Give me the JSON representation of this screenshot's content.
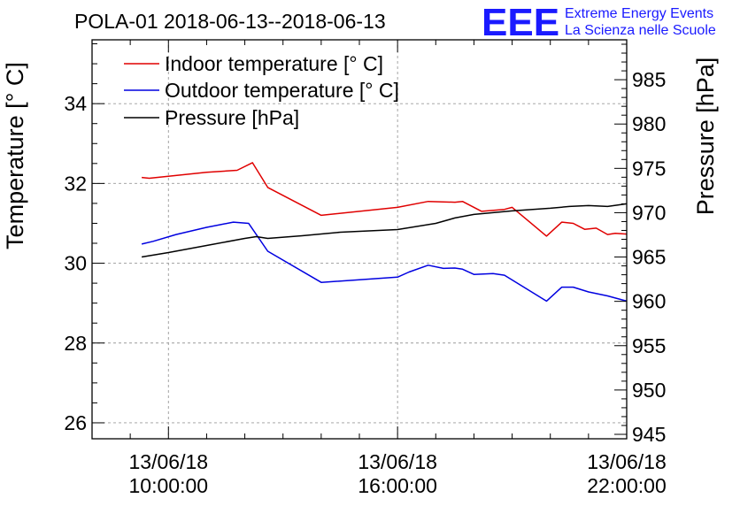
{
  "header": {
    "title": "POLA-01 2018-06-13--2018-06-13",
    "logo_text": "EEE",
    "org_line1": "Extreme Energy Events",
    "org_line2": "La Scienza nelle Scuole"
  },
  "colors": {
    "indoor": "#e00000",
    "outdoor": "#0000e0",
    "pressure": "#000000",
    "logo": "#1a1aff",
    "grid": "#9a9a9a"
  },
  "chart_data": {
    "type": "line",
    "title": "POLA-01 2018-06-13--2018-06-13",
    "ylabel": "Temperature [° C]",
    "y2label": "Pressure [hPa]",
    "ylim": [
      25.6,
      35.6
    ],
    "y2lim": [
      944.5,
      989.5
    ],
    "yticks": [
      26,
      28,
      30,
      32,
      34
    ],
    "y2ticks": [
      945,
      950,
      955,
      960,
      965,
      970,
      975,
      980,
      985
    ],
    "xlim": [
      8.0,
      22.0
    ],
    "xticks": [
      {
        "x": 10,
        "date": "13/06/18",
        "time": "10:00:00"
      },
      {
        "x": 16,
        "date": "13/06/18",
        "time": "16:00:00"
      },
      {
        "x": 22,
        "date": "13/06/18",
        "time": "22:00:00"
      }
    ],
    "grid": true,
    "legend_position": "top-left",
    "series": [
      {
        "name": "Indoor temperature [° C]",
        "axis": "left",
        "color_key": "indoor",
        "x": [
          9.3,
          9.5,
          10.0,
          11.0,
          11.8,
          12.2,
          12.6,
          14.0,
          16.0,
          16.8,
          17.5,
          17.7,
          18.2,
          18.8,
          19.0,
          19.9,
          20.3,
          20.6,
          20.9,
          21.2,
          21.5,
          21.7,
          22.0
        ],
        "y": [
          32.15,
          32.13,
          32.18,
          32.28,
          32.33,
          32.52,
          31.9,
          31.2,
          31.4,
          31.55,
          31.53,
          31.55,
          31.3,
          31.35,
          31.4,
          30.68,
          31.03,
          31.0,
          30.85,
          30.88,
          30.72,
          30.75,
          30.73
        ]
      },
      {
        "name": "Outdoor temperature [° C]",
        "axis": "left",
        "color_key": "outdoor",
        "x": [
          9.3,
          9.6,
          10.2,
          11.0,
          11.7,
          12.1,
          12.6,
          14.0,
          16.0,
          16.3,
          16.8,
          17.2,
          17.5,
          17.7,
          18.0,
          18.5,
          18.8,
          19.9,
          20.3,
          20.6,
          21.0,
          21.5,
          22.0
        ],
        "y": [
          30.48,
          30.55,
          30.72,
          30.9,
          31.03,
          31.0,
          30.3,
          29.52,
          29.65,
          29.78,
          29.95,
          29.87,
          29.88,
          29.85,
          29.72,
          29.74,
          29.7,
          29.05,
          29.4,
          29.4,
          29.28,
          29.18,
          29.05
        ]
      },
      {
        "name": "Pressure [hPa]",
        "axis": "right",
        "color_key": "pressure",
        "x": [
          9.3,
          10.0,
          11.0,
          12.0,
          12.3,
          12.6,
          13.5,
          14.5,
          15.5,
          16.0,
          17.0,
          17.5,
          18.0,
          18.5,
          19.0,
          20.0,
          20.5,
          21.0,
          21.5,
          22.0
        ],
        "y": [
          965.0,
          965.5,
          966.3,
          967.1,
          967.3,
          967.1,
          967.4,
          967.8,
          968.0,
          968.1,
          968.8,
          969.4,
          969.8,
          970.0,
          970.2,
          970.5,
          970.7,
          970.8,
          970.7,
          971.0
        ]
      }
    ]
  }
}
